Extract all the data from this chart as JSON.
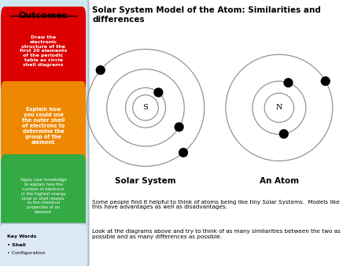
{
  "title": "Solar System Model of the Atom: Similarities and\ndifferences",
  "left_panel_bg": "#d0e8f0",
  "outcomes_title": "Outcomes",
  "box1_text": "Draw the\nelectronic\nstructure of the\nfirst 20 elements\nof the periodic\ntable as circle\nshell diagrams",
  "box1_color": "#dd0000",
  "box2_text": "Explain how\nyou could use\nthe outer shell\nof electrons to\ndetermine the\ngroup of the\nelement",
  "box2_color": "#ee8800",
  "box3_text": "Apply your knowledge\nto explain how the\nnumber of electrons\nin the highest energy\nlevel or shell relates\nto the chemical\nproperties of an\nelement",
  "box3_color": "#33aa44",
  "key_words_title": "Key Words",
  "key_words": [
    "Shell",
    "Configuration"
  ],
  "key_words_bg": "#dde8f5",
  "solar_label": "Solar System",
  "atom_label": "An Atom",
  "solar_center_label": "S",
  "atom_center_label": "N",
  "text1": "Some people find it helpful to think of atoms being like tiny Solar Systems.  Models like\nthis have advantages as well as disadvantages.",
  "text2": "Look at the diagrams above and try to think of as many similarities between the two as\npossible and as many differences as possible.",
  "main_bg": "#ffffff"
}
